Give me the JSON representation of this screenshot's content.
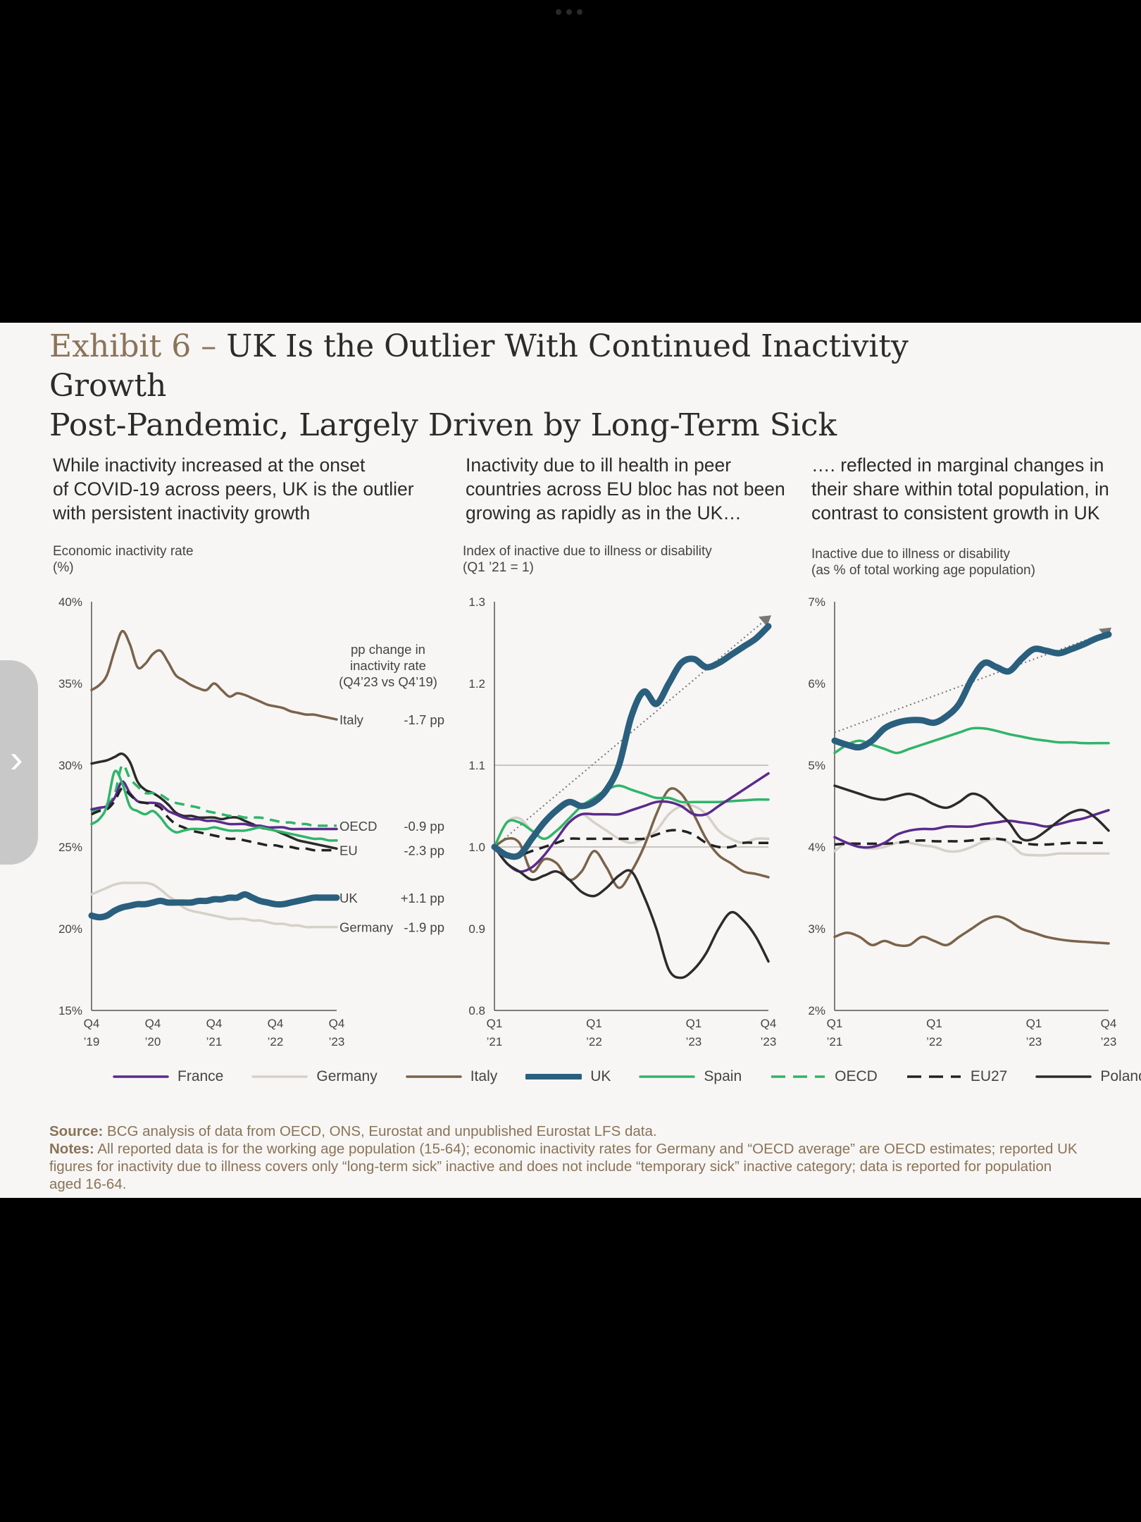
{
  "title": {
    "exhibit": "Exhibit 6 – ",
    "line1": "UK Is the Outlier With Continued Inactivity Growth",
    "line2": "Post-Pandemic, Largely Driven by Long-Term Sick"
  },
  "panels": [
    {
      "subtitle": [
        "While inactivity increased at the onset",
        "of COVID-19 across peers, UK is the outlier",
        "with persistent inactivity growth"
      ],
      "axis_title": [
        "Economic inactivity rate",
        "(%)"
      ]
    },
    {
      "subtitle": [
        "Inactivity due to ill health in peer",
        "countries across EU bloc has not been",
        "growing as rapidly as in the UK…"
      ],
      "axis_title": [
        "Index of inactive due to illness or disability",
        "(Q1 ’21 = 1)"
      ]
    },
    {
      "subtitle": [
        "…. reflected in marginal changes in",
        "their share within total population, in",
        "contrast to consistent growth in UK"
      ],
      "axis_title": [
        "Inactive due to illness or disability",
        "(as % of total working age population)"
      ]
    }
  ],
  "pp_header": [
    "pp change in",
    "inactivity rate",
    "(Q4’23 vs Q4’19)"
  ],
  "series_styles": {
    "France": {
      "color": "#5b2a8c",
      "width": 3.5,
      "dash": ""
    },
    "Germany": {
      "color": "#d6d1c8",
      "width": 3.5,
      "dash": ""
    },
    "Italy": {
      "color": "#7a634b",
      "width": 3.5,
      "dash": ""
    },
    "UK": {
      "color": "#2a5f7e",
      "width": 9,
      "dash": ""
    },
    "Spain": {
      "color": "#2fb56a",
      "width": 3.5,
      "dash": ""
    },
    "OECD": {
      "color": "#2fb56a",
      "width": 3.5,
      "dash": "14 9"
    },
    "EU27": {
      "color": "#222222",
      "width": 3.5,
      "dash": "14 9"
    },
    "Poland": {
      "color": "#2b2b2b",
      "width": 3.5,
      "dash": ""
    }
  },
  "legend": [
    "France",
    "Germany",
    "Italy",
    "UK",
    "Spain",
    "OECD",
    "EU27",
    "Poland"
  ],
  "chart_data": [
    {
      "type": "line",
      "x_ticks": [
        [
          "Q4",
          "’19"
        ],
        [
          "Q4",
          "’20"
        ],
        [
          "Q4",
          "’21"
        ],
        [
          "Q4",
          "’22"
        ],
        [
          "Q4",
          "’23"
        ]
      ],
      "x": [
        0,
        0.5,
        1,
        1.5,
        2,
        2.5,
        3,
        3.5,
        4,
        4.5,
        5,
        5.5,
        6,
        6.5,
        7,
        7.5,
        8,
        8.5,
        9,
        9.5,
        10,
        10.5,
        11,
        11.5,
        12,
        12.5,
        13,
        13.5,
        14,
        14.5,
        15,
        15.5,
        16
      ],
      "ylim": [
        15,
        40
      ],
      "y_ticks": [
        "15%",
        "20%",
        "25%",
        "30%",
        "35%",
        "40%"
      ],
      "series": [
        {
          "name": "Italy",
          "values": [
            34.6,
            34.9,
            35.5,
            37.0,
            38.2,
            37.4,
            36.0,
            36.2,
            36.8,
            37.0,
            36.3,
            35.5,
            35.2,
            34.9,
            34.7,
            34.6,
            35.0,
            34.6,
            34.2,
            34.4,
            34.3,
            34.1,
            33.9,
            33.7,
            33.6,
            33.5,
            33.3,
            33.2,
            33.1,
            33.1,
            33.0,
            32.9,
            32.8
          ]
        },
        {
          "name": "Poland",
          "values": [
            30.1,
            30.2,
            30.3,
            30.5,
            30.7,
            30.2,
            29.0,
            28.5,
            28.3,
            28.0,
            27.6,
            27.1,
            26.9,
            26.9,
            26.8,
            26.8,
            26.8,
            26.7,
            26.8,
            26.8,
            26.6,
            26.4,
            26.2,
            26.1,
            26.0,
            25.8,
            25.6,
            25.4,
            25.3,
            25.2,
            25.1,
            25.0,
            24.9
          ]
        },
        {
          "name": "OECD",
          "values": [
            27.2,
            27.3,
            27.6,
            28.2,
            30.0,
            29.2,
            28.7,
            28.3,
            28.3,
            28.2,
            27.9,
            27.7,
            27.6,
            27.5,
            27.4,
            27.2,
            27.1,
            27.0,
            26.9,
            26.9,
            26.8,
            26.8,
            26.8,
            26.7,
            26.6,
            26.5,
            26.5,
            26.4,
            26.4,
            26.3,
            26.3,
            26.3,
            26.3
          ]
        },
        {
          "name": "France",
          "values": [
            27.3,
            27.4,
            27.5,
            28.0,
            29.0,
            28.3,
            27.8,
            27.7,
            27.7,
            27.6,
            27.2,
            27.0,
            26.8,
            26.7,
            26.7,
            26.6,
            26.6,
            26.5,
            26.4,
            26.4,
            26.4,
            26.3,
            26.3,
            26.2,
            26.2,
            26.2,
            26.1,
            26.1,
            26.1,
            26.1,
            26.1,
            26.1,
            26.1
          ]
        },
        {
          "name": "EU27",
          "values": [
            27.0,
            27.2,
            27.3,
            27.8,
            28.6,
            28.2,
            27.8,
            27.7,
            27.6,
            27.4,
            26.8,
            26.4,
            26.2,
            26.0,
            25.9,
            25.8,
            25.7,
            25.6,
            25.5,
            25.5,
            25.4,
            25.3,
            25.2,
            25.1,
            25.1,
            25.0,
            25.0,
            24.9,
            24.9,
            24.8,
            24.8,
            24.8,
            24.8
          ]
        },
        {
          "name": "Spain",
          "values": [
            26.4,
            26.7,
            27.5,
            29.6,
            28.9,
            27.5,
            27.2,
            27.0,
            27.2,
            26.8,
            26.2,
            25.9,
            26.0,
            26.1,
            26.1,
            26.1,
            26.2,
            26.1,
            26.0,
            26.0,
            26.0,
            26.1,
            26.2,
            26.1,
            26.0,
            25.9,
            25.8,
            25.7,
            25.6,
            25.5,
            25.5,
            25.4,
            25.4
          ]
        },
        {
          "name": "Germany",
          "values": [
            22.1,
            22.3,
            22.5,
            22.7,
            22.8,
            22.8,
            22.8,
            22.8,
            22.7,
            22.4,
            22.0,
            21.7,
            21.3,
            21.1,
            21.0,
            20.9,
            20.8,
            20.7,
            20.6,
            20.6,
            20.6,
            20.5,
            20.5,
            20.4,
            20.3,
            20.3,
            20.2,
            20.2,
            20.1,
            20.1,
            20.1,
            20.1,
            20.1
          ]
        },
        {
          "name": "UK",
          "values": [
            20.8,
            20.7,
            20.8,
            21.1,
            21.3,
            21.4,
            21.5,
            21.5,
            21.6,
            21.7,
            21.6,
            21.6,
            21.6,
            21.6,
            21.7,
            21.7,
            21.8,
            21.8,
            21.9,
            21.9,
            22.1,
            21.9,
            21.7,
            21.6,
            21.5,
            21.5,
            21.6,
            21.7,
            21.8,
            21.9,
            21.9,
            21.9,
            21.9
          ]
        }
      ],
      "end_labels": [
        {
          "name": "Italy",
          "change": "-1.7 pp"
        },
        {
          "name": "OECD",
          "change": "-0.9 pp"
        },
        {
          "name": "EU",
          "change": "-2.3 pp"
        },
        {
          "name": "UK",
          "change": "+1.1 pp"
        },
        {
          "name": "Germany",
          "change": "-1.9 pp"
        }
      ]
    },
    {
      "type": "line",
      "x_ticks": [
        [
          "Q1",
          "’21"
        ],
        [
          "Q1",
          "’22"
        ],
        [
          "Q1",
          "’23"
        ],
        [
          "Q4",
          "’23"
        ]
      ],
      "x_tick_positions": [
        0,
        4,
        8,
        11
      ],
      "x": [
        0,
        0.5,
        1,
        1.5,
        2,
        2.5,
        3,
        3.5,
        4,
        4.5,
        5,
        5.5,
        6,
        6.5,
        7,
        7.5,
        8,
        8.5,
        9,
        9.5,
        10,
        10.5,
        11
      ],
      "ylim": [
        0.8,
        1.3
      ],
      "y_ticks": [
        "0.8",
        "0.9",
        "1.0",
        "1.1",
        "1.2",
        "1.3"
      ],
      "reference_lines": [
        1.0,
        1.1
      ],
      "series": [
        {
          "name": "Germany",
          "values": [
            1.0,
            1.03,
            1.035,
            1.02,
            1.01,
            1.02,
            1.03,
            1.04,
            1.03,
            1.02,
            1.01,
            1.005,
            1.01,
            1.02,
            1.04,
            1.05,
            1.05,
            1.04,
            1.02,
            1.01,
            1.005,
            1.01,
            1.01
          ]
        },
        {
          "name": "Italy",
          "values": [
            1.0,
            1.01,
            1.005,
            0.97,
            0.985,
            0.98,
            0.96,
            0.97,
            0.995,
            0.975,
            0.95,
            0.97,
            1.0,
            1.04,
            1.07,
            1.065,
            1.04,
            1.01,
            0.99,
            0.98,
            0.97,
            0.967,
            0.963
          ]
        },
        {
          "name": "Spain",
          "values": [
            1.0,
            1.03,
            1.03,
            1.02,
            1.01,
            1.02,
            1.035,
            1.05,
            1.06,
            1.07,
            1.075,
            1.07,
            1.065,
            1.06,
            1.06,
            1.055,
            1.055,
            1.055,
            1.055,
            1.056,
            1.057,
            1.058,
            1.058
          ]
        },
        {
          "name": "France",
          "values": [
            1.0,
            0.98,
            0.97,
            0.975,
            0.99,
            1.01,
            1.03,
            1.04,
            1.04,
            1.04,
            1.04,
            1.045,
            1.05,
            1.055,
            1.055,
            1.05,
            1.04,
            1.04,
            1.05,
            1.06,
            1.07,
            1.08,
            1.09
          ]
        },
        {
          "name": "EU27",
          "values": [
            1.0,
            0.99,
            0.99,
            0.995,
            1.0,
            1.005,
            1.01,
            1.01,
            1.01,
            1.01,
            1.01,
            1.01,
            1.01,
            1.015,
            1.02,
            1.02,
            1.015,
            1.005,
            1.0,
            1.0,
            1.005,
            1.005,
            1.005
          ]
        },
        {
          "name": "Poland",
          "values": [
            1.0,
            0.98,
            0.97,
            0.96,
            0.965,
            0.97,
            0.96,
            0.945,
            0.94,
            0.95,
            0.965,
            0.97,
            0.94,
            0.9,
            0.85,
            0.84,
            0.85,
            0.87,
            0.9,
            0.92,
            0.91,
            0.89,
            0.86
          ]
        },
        {
          "name": "UK",
          "values": [
            1.0,
            0.99,
            0.99,
            1.01,
            1.03,
            1.045,
            1.055,
            1.05,
            1.055,
            1.07,
            1.1,
            1.16,
            1.19,
            1.175,
            1.2,
            1.225,
            1.23,
            1.22,
            1.225,
            1.235,
            1.245,
            1.255,
            1.27
          ]
        }
      ],
      "trend": {
        "from": [
          0,
          1.0
        ],
        "to": [
          11,
          1.28
        ]
      }
    },
    {
      "type": "line",
      "x_ticks": [
        [
          "Q1",
          "’21"
        ],
        [
          "Q1",
          "’22"
        ],
        [
          "Q1",
          "’23"
        ],
        [
          "Q4",
          "’23"
        ]
      ],
      "x_tick_positions": [
        0,
        4,
        8,
        11
      ],
      "x": [
        0,
        0.5,
        1,
        1.5,
        2,
        2.5,
        3,
        3.5,
        4,
        4.5,
        5,
        5.5,
        6,
        6.5,
        7,
        7.5,
        8,
        8.5,
        9,
        9.5,
        10,
        10.5,
        11
      ],
      "ylim": [
        2,
        7
      ],
      "y_ticks": [
        "2%",
        "3%",
        "4%",
        "5%",
        "6%",
        "7%"
      ],
      "series": [
        {
          "name": "Italy",
          "values": [
            2.9,
            2.95,
            2.9,
            2.8,
            2.85,
            2.8,
            2.8,
            2.9,
            2.85,
            2.8,
            2.9,
            3.0,
            3.1,
            3.15,
            3.1,
            3.0,
            2.95,
            2.9,
            2.87,
            2.85,
            2.84,
            2.83,
            2.82
          ]
        },
        {
          "name": "Germany",
          "values": [
            3.95,
            4.05,
            4.0,
            3.98,
            4.0,
            4.05,
            4.05,
            4.02,
            4.0,
            3.95,
            3.95,
            4.0,
            4.07,
            4.1,
            4.05,
            3.92,
            3.9,
            3.9,
            3.92,
            3.92,
            3.92,
            3.92,
            3.92
          ]
        },
        {
          "name": "EU27",
          "values": [
            4.03,
            4.04,
            4.04,
            4.04,
            4.04,
            4.05,
            4.07,
            4.08,
            4.07,
            4.07,
            4.07,
            4.08,
            4.1,
            4.1,
            4.08,
            4.05,
            4.03,
            4.03,
            4.04,
            4.05,
            4.05,
            4.05,
            4.05
          ]
        },
        {
          "name": "France",
          "values": [
            4.12,
            4.05,
            4.0,
            4.0,
            4.05,
            4.15,
            4.2,
            4.22,
            4.22,
            4.25,
            4.25,
            4.25,
            4.28,
            4.3,
            4.32,
            4.3,
            4.28,
            4.25,
            4.28,
            4.32,
            4.35,
            4.4,
            4.45
          ]
        },
        {
          "name": "Poland",
          "values": [
            4.75,
            4.7,
            4.65,
            4.6,
            4.58,
            4.62,
            4.65,
            4.6,
            4.52,
            4.48,
            4.55,
            4.65,
            4.6,
            4.45,
            4.3,
            4.1,
            4.1,
            4.2,
            4.32,
            4.42,
            4.45,
            4.35,
            4.2
          ]
        },
        {
          "name": "Spain",
          "values": [
            5.15,
            5.25,
            5.3,
            5.25,
            5.2,
            5.15,
            5.2,
            5.25,
            5.3,
            5.35,
            5.4,
            5.45,
            5.45,
            5.42,
            5.38,
            5.35,
            5.32,
            5.3,
            5.28,
            5.28,
            5.27,
            5.27,
            5.27
          ]
        },
        {
          "name": "UK",
          "values": [
            5.3,
            5.25,
            5.22,
            5.3,
            5.45,
            5.52,
            5.55,
            5.55,
            5.52,
            5.6,
            5.75,
            6.05,
            6.25,
            6.2,
            6.15,
            6.3,
            6.42,
            6.4,
            6.37,
            6.42,
            6.48,
            6.55,
            6.6
          ]
        }
      ],
      "trend": {
        "from": [
          0,
          5.4
        ],
        "to": [
          11,
          6.65
        ]
      }
    }
  ],
  "footer": {
    "source_label": "Source:",
    "source_text": " BCG analysis of data from OECD, ONS, Eurostat and unpublished Eurostat LFS data.",
    "notes_label": "Notes:",
    "notes_text": " All reported data is for the working age population (15-64); economic inactivity rates for Germany and “OECD average” are OECD estimates; reported UK figures for inactivity due to illness covers only “long-term sick” inactive and does not include “temporary sick” inactive category; data is reported for population aged 16-64."
  },
  "side_tab": {
    "chevron": "›"
  }
}
